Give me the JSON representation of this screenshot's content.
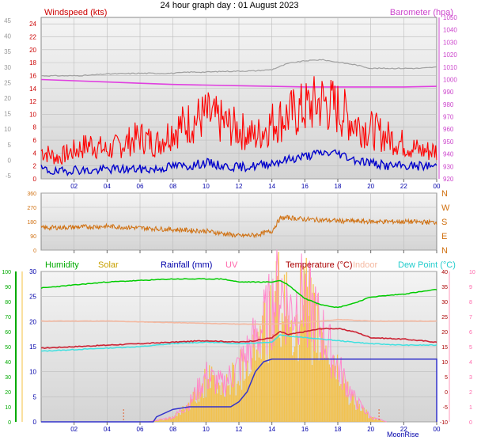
{
  "title": "24 hour graph day : 01 August 2023",
  "colors": {
    "background": "#ffffff",
    "plot_bg_top": "#f4f4f4",
    "plot_bg_bottom": "#d8d8d8",
    "grid": "#bcbcbc",
    "wind_gust": "#ff0000",
    "wind_avg": "#0000cc",
    "barometer": "#e040e0",
    "humidity": "#00cc00",
    "solar": "#f6c040",
    "rainfall": "#3333cc",
    "uv": "#ff88cc",
    "temperature": "#cc2233",
    "indoor": "#f4b8a0",
    "dew_point": "#40e0e0",
    "direction": "#d07010",
    "wind_axis": "#cc0000",
    "baro_axis": "#cc44cc",
    "dir_axis": "#d07010",
    "hum_axis": "#00aa00",
    "rain_axis": "#0000aa",
    "temp_axis": "#aa0000",
    "uv_axis": "#ff66aa",
    "x_axis": "#0000aa"
  },
  "x_ticks": [
    "02",
    "04",
    "06",
    "08",
    "10",
    "12",
    "14",
    "16",
    "18",
    "20",
    "22",
    "00"
  ],
  "moon_label": "MoonRise",
  "chart_data": [
    {
      "type": "line",
      "name": "wind",
      "labels": {
        "left": "Windspeed (kts)",
        "right": "Barometer (hpa)"
      },
      "left_ticks": [
        "24",
        "22",
        "20",
        "18",
        "16",
        "14",
        "12",
        "10",
        "8",
        "6",
        "4",
        "2",
        "0"
      ],
      "outer_ticks": [
        "45",
        "40",
        "35",
        "30",
        "25",
        "20",
        "15",
        "10",
        "5",
        "0",
        "-5"
      ],
      "right_ticks": [
        "1050",
        "1040",
        "1030",
        "1020",
        "1010",
        "1000",
        "990",
        "980",
        "970",
        "960",
        "950",
        "940",
        "930",
        "920"
      ],
      "ylim_left": [
        0,
        25
      ],
      "ylim_right": [
        920,
        1050
      ],
      "x_hours": [
        0,
        24
      ],
      "series": [
        {
          "name": "gust",
          "points": [
            [
              0,
              4
            ],
            [
              1,
              3
            ],
            [
              2,
              4
            ],
            [
              3,
              5
            ],
            [
              4,
              4
            ],
            [
              5,
              5
            ],
            [
              6,
              6
            ],
            [
              7,
              5
            ],
            [
              8,
              7
            ],
            [
              9,
              8
            ],
            [
              10,
              9
            ],
            [
              11,
              8
            ],
            [
              12,
              7
            ],
            [
              13,
              6
            ],
            [
              14,
              8
            ],
            [
              15,
              9
            ],
            [
              16,
              10
            ],
            [
              17,
              11
            ],
            [
              18,
              10
            ],
            [
              19,
              8
            ],
            [
              20,
              7
            ],
            [
              21,
              6
            ],
            [
              22,
              5
            ],
            [
              23,
              4
            ],
            [
              24,
              4
            ]
          ]
        },
        {
          "name": "average",
          "points": [
            [
              0,
              1.5
            ],
            [
              1,
              1
            ],
            [
              2,
              1.5
            ],
            [
              3,
              1.2
            ],
            [
              4,
              1.5
            ],
            [
              5,
              1.5
            ],
            [
              6,
              1.5
            ],
            [
              7,
              1.5
            ],
            [
              8,
              2
            ],
            [
              9,
              2
            ],
            [
              10,
              2.5
            ],
            [
              11,
              2
            ],
            [
              12,
              1.8
            ],
            [
              13,
              2
            ],
            [
              14,
              2.5
            ],
            [
              15,
              3
            ],
            [
              16,
              3.5
            ],
            [
              17,
              4
            ],
            [
              18,
              4
            ],
            [
              19,
              3
            ],
            [
              20,
              2.5
            ],
            [
              21,
              2
            ],
            [
              22,
              2
            ],
            [
              23,
              2
            ],
            [
              24,
              2
            ]
          ]
        },
        {
          "name": "barometer",
          "points": [
            [
              0,
              1000
            ],
            [
              2,
              999
            ],
            [
              4,
              998
            ],
            [
              6,
              997
            ],
            [
              8,
              996
            ],
            [
              10,
              995.5
            ],
            [
              12,
              995
            ],
            [
              14,
              994.5
            ],
            [
              16,
              994
            ],
            [
              18,
              994
            ],
            [
              20,
              994
            ],
            [
              22,
              994
            ],
            [
              24,
              994.5
            ]
          ]
        },
        {
          "name": "gray",
          "points": [
            [
              0,
              1003
            ],
            [
              2,
              1003
            ],
            [
              3,
              1003.5
            ],
            [
              4,
              1004.5
            ],
            [
              6,
              1005
            ],
            [
              8,
              1005
            ],
            [
              9,
              1006
            ],
            [
              10,
              1006
            ],
            [
              11,
              1006.5
            ],
            [
              13,
              1007
            ],
            [
              14,
              1008
            ],
            [
              15,
              1013
            ],
            [
              16,
              1015
            ],
            [
              17,
              1016
            ],
            [
              18,
              1014
            ],
            [
              19,
              1012
            ],
            [
              20,
              1009
            ],
            [
              22,
              1009
            ],
            [
              23,
              1009
            ],
            [
              24,
              1010
            ]
          ]
        }
      ]
    },
    {
      "type": "line",
      "name": "direction",
      "left_ticks": [
        "360",
        "270",
        "180",
        "90",
        "0"
      ],
      "right_ticks": [
        "N",
        "W",
        "S",
        "E",
        "N"
      ],
      "ylim": [
        0,
        360
      ],
      "series": [
        {
          "name": "direction",
          "points": [
            [
              0,
              140
            ],
            [
              2,
              145
            ],
            [
              4,
              150
            ],
            [
              6,
              140
            ],
            [
              8,
              130
            ],
            [
              10,
              120
            ],
            [
              12,
              90
            ],
            [
              13,
              95
            ],
            [
              14,
              120
            ],
            [
              14.5,
              200
            ],
            [
              15,
              205
            ],
            [
              16,
              195
            ],
            [
              18,
              185
            ],
            [
              20,
              180
            ],
            [
              22,
              180
            ],
            [
              24,
              175
            ]
          ]
        }
      ]
    },
    {
      "type": "line",
      "name": "climate",
      "labels": [
        "Humidity",
        "Solar",
        "Rainfall (mm)",
        "UV",
        "Temperature (°C)",
        "Indoor",
        "Dew Point (°C)"
      ],
      "hum_ticks": [
        "100",
        "90",
        "80",
        "70",
        "60",
        "50",
        "40",
        "30",
        "20",
        "10",
        "0"
      ],
      "rain_ticks": [
        "30",
        "25",
        "20",
        "15",
        "10",
        "5",
        "0"
      ],
      "temp_ticks": [
        "40",
        "35",
        "30",
        "25",
        "20",
        "15",
        "10",
        "5",
        "0",
        "-5",
        "-10"
      ],
      "uv_ticks": [
        "10",
        "9",
        "8",
        "7",
        "6",
        "5",
        "4",
        "3",
        "2",
        "1",
        "0"
      ],
      "ylim_humidity": [
        0,
        100
      ],
      "ylim_rain": [
        0,
        30
      ],
      "ylim_temp": [
        -10,
        40
      ],
      "ylim_uv": [
        0,
        10
      ],
      "series": [
        {
          "name": "humidity",
          "points": [
            [
              0,
              89
            ],
            [
              2,
              91
            ],
            [
              4,
              93
            ],
            [
              6,
              94
            ],
            [
              8,
              95
            ],
            [
              10,
              95
            ],
            [
              11,
              95
            ],
            [
              12,
              93
            ],
            [
              14,
              93
            ],
            [
              14.5,
              94
            ],
            [
              15,
              91
            ],
            [
              16,
              82
            ],
            [
              17,
              78
            ],
            [
              18,
              76
            ],
            [
              19,
              79
            ],
            [
              20,
              83
            ],
            [
              22,
              85
            ],
            [
              24,
              88
            ]
          ]
        },
        {
          "name": "temperature",
          "points": [
            [
              0,
              14.5
            ],
            [
              2,
              15
            ],
            [
              4,
              15.5
            ],
            [
              6,
              16
            ],
            [
              8,
              16.5
            ],
            [
              10,
              17
            ],
            [
              12,
              16.5
            ],
            [
              13,
              17
            ],
            [
              14,
              18
            ],
            [
              14.5,
              20
            ],
            [
              15,
              19
            ],
            [
              16,
              20
            ],
            [
              17,
              21
            ],
            [
              18,
              21
            ],
            [
              19,
              20
            ],
            [
              20,
              18
            ],
            [
              22,
              17.5
            ],
            [
              24,
              16.5
            ]
          ]
        },
        {
          "name": "dew_point",
          "points": [
            [
              0,
              13.5
            ],
            [
              2,
              14
            ],
            [
              4,
              14.5
            ],
            [
              6,
              15
            ],
            [
              8,
              16
            ],
            [
              10,
              16.5
            ],
            [
              12,
              16
            ],
            [
              14,
              16.5
            ],
            [
              14.5,
              19
            ],
            [
              15,
              18.5
            ],
            [
              16,
              18
            ],
            [
              17,
              17.5
            ],
            [
              18,
              17
            ],
            [
              20,
              16
            ],
            [
              22,
              15.5
            ],
            [
              24,
              15.5
            ]
          ]
        },
        {
          "name": "indoor",
          "points": [
            [
              0,
              23.5
            ],
            [
              4,
              23.5
            ],
            [
              8,
              23
            ],
            [
              12,
              22.5
            ],
            [
              14,
              22.5
            ],
            [
              16,
              23
            ],
            [
              18,
              24
            ],
            [
              20,
              23.5
            ],
            [
              24,
              23.5
            ]
          ]
        },
        {
          "name": "rainfall",
          "points": [
            [
              0,
              0
            ],
            [
              6,
              0
            ],
            [
              6.8,
              0
            ],
            [
              7,
              1
            ],
            [
              8,
              2.5
            ],
            [
              9,
              3
            ],
            [
              11.5,
              3
            ],
            [
              12,
              4
            ],
            [
              12.5,
              6
            ],
            [
              13,
              10
            ],
            [
              13.5,
              12
            ],
            [
              14,
              12.5
            ],
            [
              24,
              12.5
            ]
          ]
        },
        {
          "name": "solar_uv",
          "points": [
            [
              6.5,
              0
            ],
            [
              8,
              1
            ],
            [
              9,
              4
            ],
            [
              10,
              10
            ],
            [
              11,
              8
            ],
            [
              12,
              12
            ],
            [
              13,
              18
            ],
            [
              14,
              25
            ],
            [
              14.5,
              30
            ],
            [
              15,
              24
            ],
            [
              16,
              28
            ],
            [
              17,
              20
            ],
            [
              18,
              12
            ],
            [
              19,
              5
            ],
            [
              20,
              1
            ],
            [
              21,
              0
            ]
          ]
        }
      ]
    }
  ]
}
